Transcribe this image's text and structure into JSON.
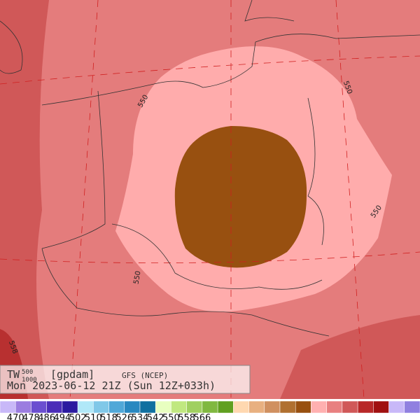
{
  "header": {
    "title": "TW",
    "sup": "500",
    "sub": "1000",
    "units": "[gpdam]",
    "source": "GFS (NCEP)",
    "valid": "Mon 2023-06-12 21Z (Sun 12Z+033h)"
  },
  "contour_labels": [
    "550",
    "550",
    "550",
    "550",
    "558"
  ],
  "colorbar": {
    "labels": [
      470,
      478,
      486,
      494,
      502,
      510,
      518,
      526,
      534,
      542,
      550,
      558,
      566
    ],
    "colors": [
      "#c8b8f8",
      "#9b7de0",
      "#6a4fd0",
      "#4a2db8",
      "#2a1aa0",
      "#b0e8f8",
      "#80c8e8",
      "#50a8d8",
      "#2888c0",
      "#1070a0",
      "#e8ffc0",
      "#c0e880",
      "#a0d060",
      "#80b840",
      "#60a020",
      "#ffd8b0",
      "#e8b080",
      "#d09060",
      "#b07030",
      "#985010",
      "#ffb0b0",
      "#e88080",
      "#d05858",
      "#b82828",
      "#a01010",
      "#c8b8f8",
      "#9080e0"
    ]
  }
}
